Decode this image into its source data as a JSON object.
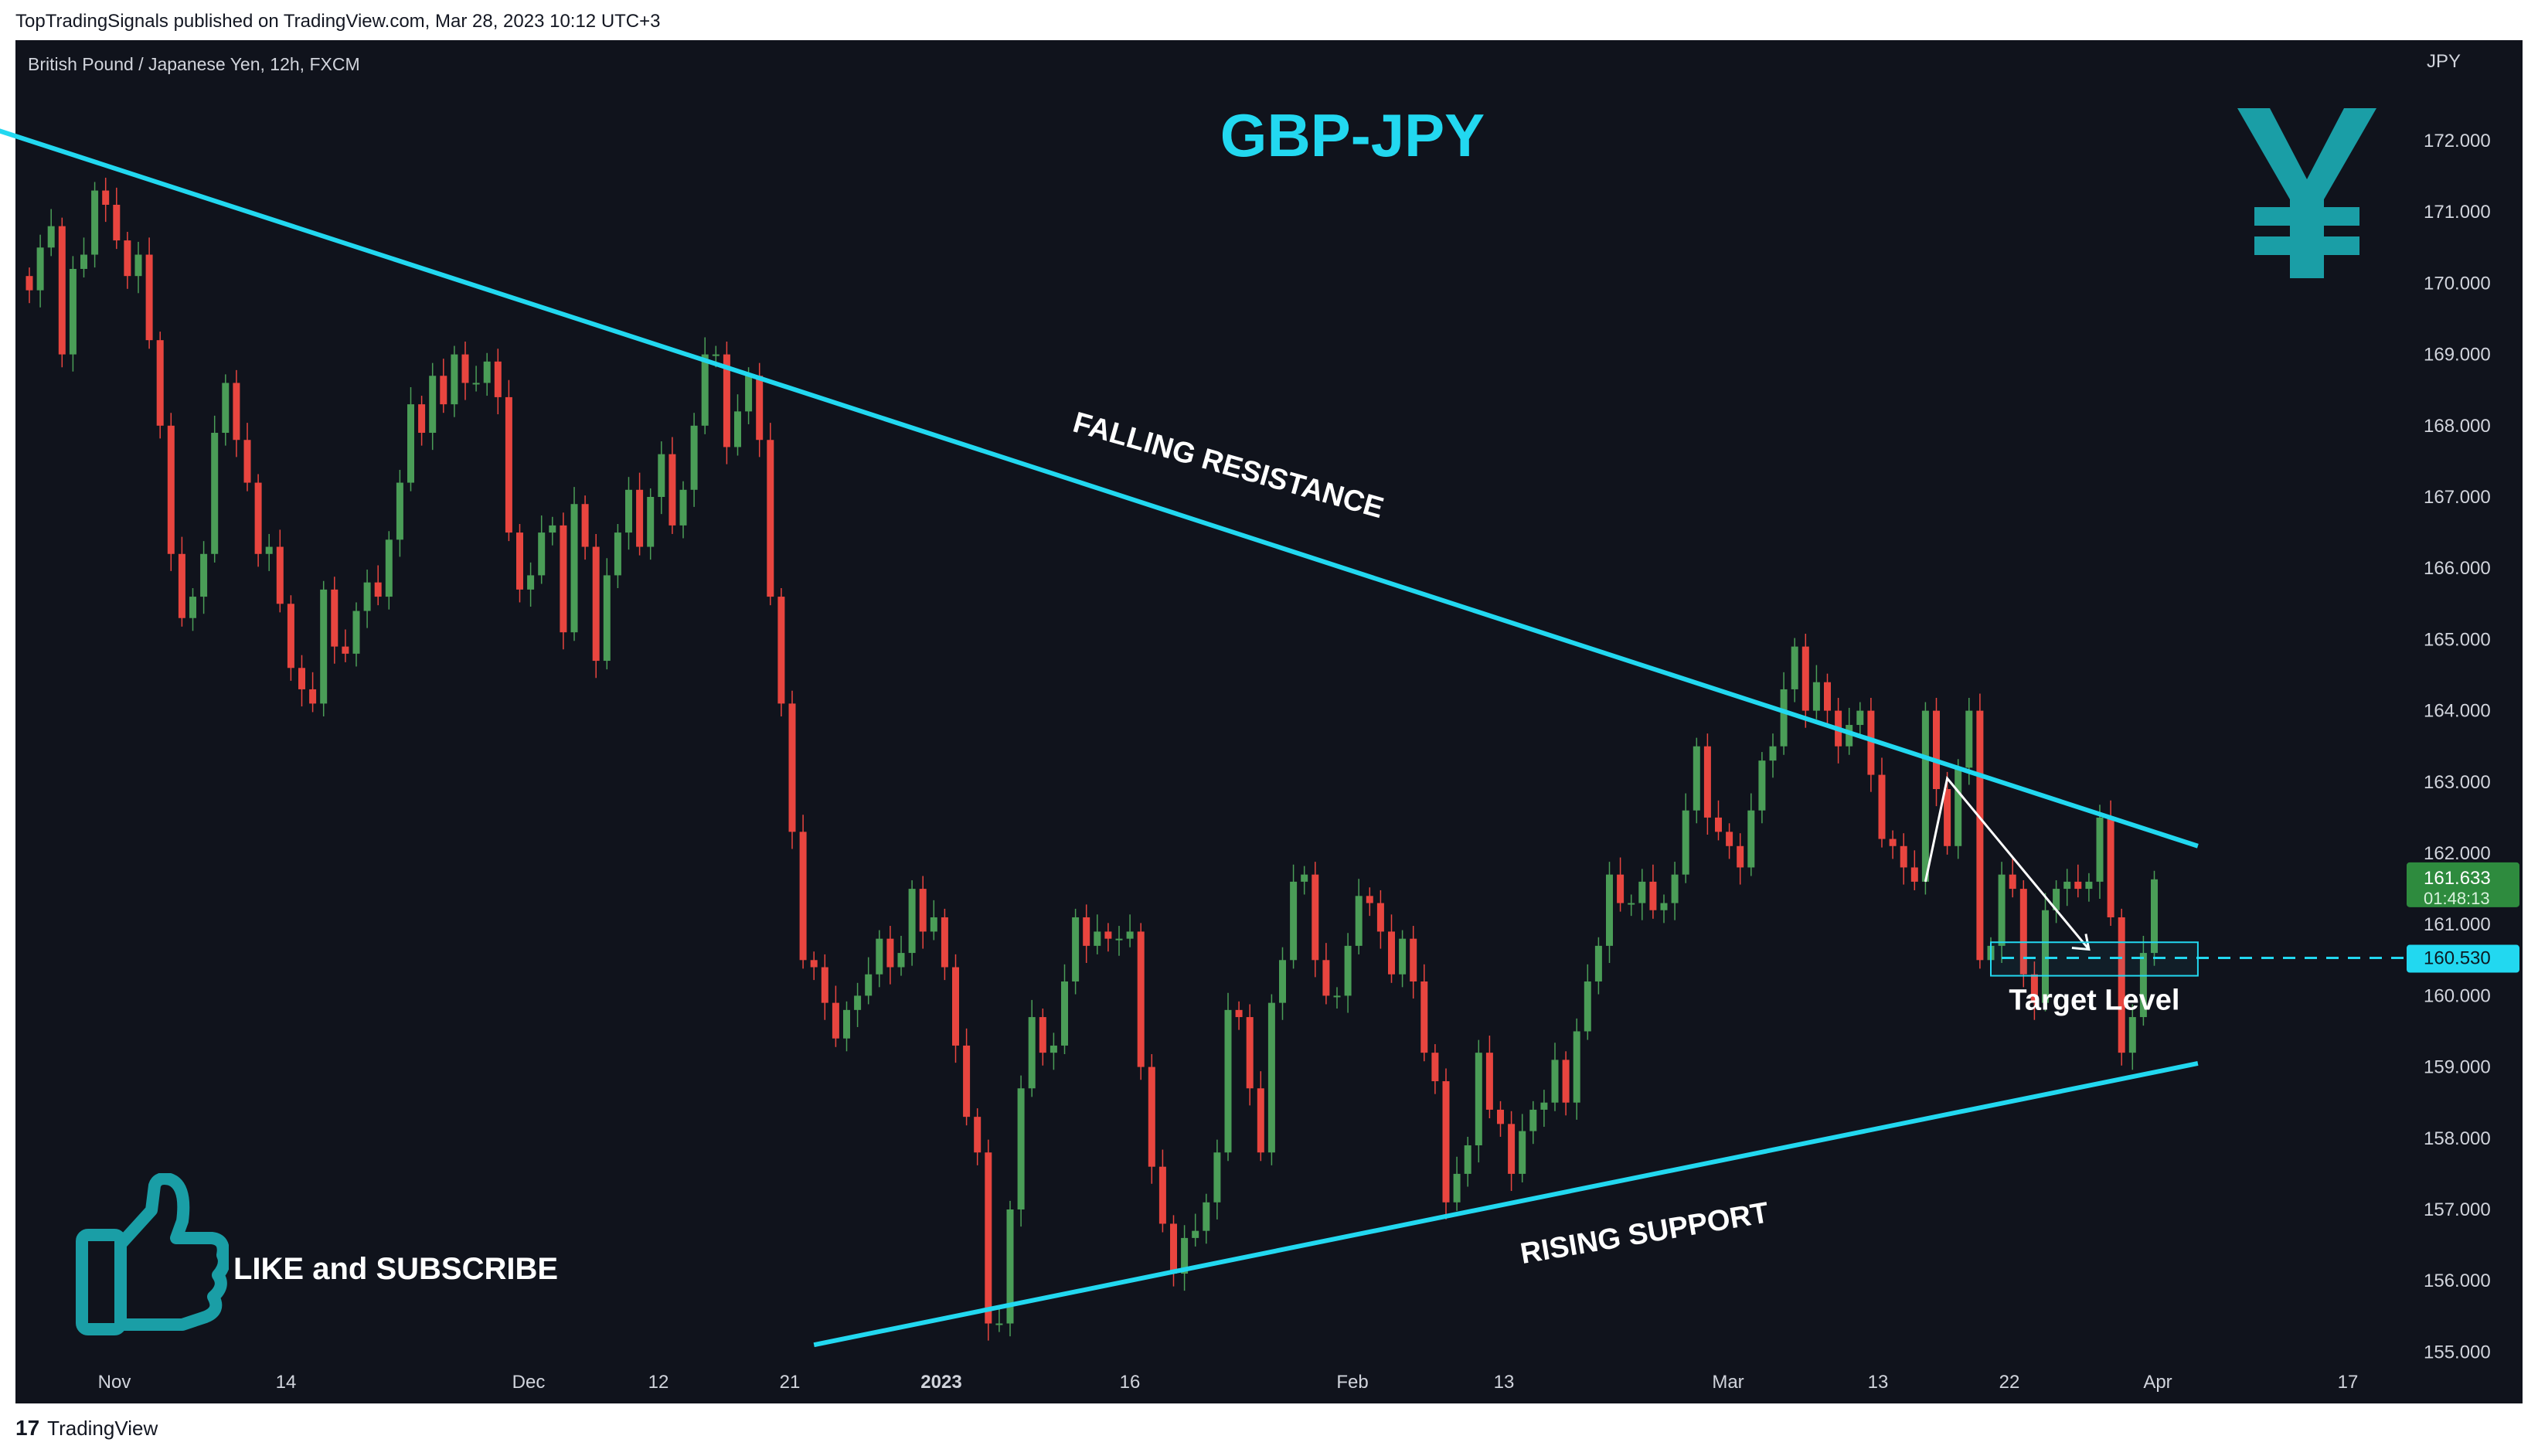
{
  "header": {
    "published_text": "TopTradingSignals published on TradingView.com, Mar 28, 2023 10:12 UTC+3"
  },
  "footer": {
    "logo_mark": "17",
    "brand": "TradingView"
  },
  "symbol_label": "British Pound / Japanese Yen, 12h, FXCM",
  "currency_label": "JPY",
  "title": "GBP-JPY",
  "like_text": "LIKE and SUBSCRIBE",
  "colors": {
    "background": "#10131c",
    "accent": "#22d8f0",
    "up": "#4a9d57",
    "down": "#e8453f",
    "axis_text": "#d1d4dc",
    "icon": "#1a9ea6"
  },
  "icons": [
    "yen-icon",
    "thumbs-up-icon"
  ],
  "chart_data": {
    "type": "candlestick",
    "title": "GBP-JPY",
    "ylim": [
      155.0,
      172.0
    ],
    "y_ticks": [
      "172.000",
      "171.000",
      "170.000",
      "169.000",
      "168.000",
      "167.000",
      "166.000",
      "165.000",
      "164.000",
      "163.000",
      "162.000",
      "161.000",
      "160.000",
      "159.000",
      "158.000",
      "157.000",
      "156.000",
      "155.000"
    ],
    "x_ticks": [
      "Nov",
      "14",
      "Dec",
      "12",
      "21",
      "2023",
      "16",
      "Feb",
      "13",
      "Mar",
      "13",
      "22",
      "Apr",
      "17"
    ],
    "last_price": "161.633",
    "countdown": "01:48:13",
    "target_price": "160.530",
    "annotations": {
      "resistance": "FALLING RESISTANCE",
      "support": "RISING SUPPORT",
      "target": "Target Level"
    },
    "trendlines": [
      {
        "name": "falling-resistance",
        "from": {
          "bar": -4,
          "price": 172.2
        },
        "to": {
          "bar": 199,
          "price": 162.1
        }
      },
      {
        "name": "rising-support",
        "from": {
          "bar": 72,
          "price": 155.1
        },
        "to": {
          "bar": 199,
          "price": 159.05
        }
      }
    ],
    "projection": [
      {
        "bar": 174,
        "price": 161.6
      },
      {
        "bar": 176,
        "price": 163.05
      },
      {
        "bar": 189,
        "price": 160.65
      }
    ],
    "target_zone": {
      "price_low": 160.28,
      "price_high": 160.75,
      "bar_start": 180,
      "bar_end": 199
    },
    "series": [
      {
        "name": "GBPJPY 12h",
        "closes": [
          169.9,
          170.5,
          170.8,
          169.0,
          170.2,
          170.4,
          171.3,
          171.1,
          170.6,
          170.1,
          170.4,
          169.2,
          168.0,
          166.2,
          165.3,
          165.6,
          166.2,
          167.9,
          168.6,
          167.8,
          167.2,
          166.2,
          166.3,
          165.5,
          164.6,
          164.3,
          164.1,
          165.7,
          164.9,
          164.8,
          165.4,
          165.8,
          165.6,
          166.4,
          167.2,
          168.3,
          167.9,
          168.7,
          168.3,
          169.0,
          168.6,
          168.6,
          168.9,
          168.4,
          166.5,
          165.7,
          165.9,
          166.5,
          166.6,
          165.1,
          166.9,
          166.3,
          164.7,
          165.9,
          166.5,
          167.1,
          166.3,
          167.0,
          167.6,
          166.6,
          167.1,
          168.0,
          169.0,
          169.0,
          167.7,
          168.2,
          168.7,
          167.8,
          165.6,
          164.1,
          162.3,
          160.5,
          160.4,
          159.9,
          159.4,
          159.8,
          160.0,
          160.3,
          160.8,
          160.4,
          160.6,
          161.5,
          160.9,
          161.1,
          160.4,
          159.3,
          158.3,
          157.8,
          155.4,
          155.4,
          157.0,
          158.7,
          159.7,
          159.2,
          159.3,
          160.2,
          161.1,
          160.7,
          160.9,
          160.8,
          160.8,
          160.9,
          159.0,
          157.6,
          156.8,
          156.1,
          156.6,
          156.7,
          157.1,
          157.8,
          159.8,
          159.7,
          158.7,
          157.8,
          159.9,
          160.5,
          161.6,
          161.7,
          160.5,
          160.0,
          160.0,
          160.7,
          161.4,
          161.3,
          160.9,
          160.3,
          160.8,
          160.2,
          159.2,
          158.8,
          157.1,
          157.5,
          157.9,
          159.2,
          158.4,
          158.2,
          157.5,
          158.1,
          158.4,
          158.5,
          159.1,
          158.5,
          159.5,
          160.2,
          160.7,
          161.7,
          161.3,
          161.3,
          161.6,
          161.2,
          161.3,
          161.7,
          162.6,
          163.5,
          162.5,
          162.3,
          162.1,
          161.8,
          162.6,
          163.3,
          163.5,
          164.3,
          164.9,
          164.0,
          164.4,
          164.0,
          163.5,
          163.8,
          164.0,
          163.1,
          162.2,
          162.1,
          161.8,
          161.6,
          164.0,
          162.9,
          162.1,
          163.2,
          164.0,
          160.5,
          160.7,
          161.7,
          161.5,
          160.3,
          159.9,
          161.2,
          161.5,
          161.6,
          161.5,
          161.6,
          162.5,
          161.1,
          159.2,
          159.7,
          160.6,
          161.633
        ]
      }
    ]
  }
}
